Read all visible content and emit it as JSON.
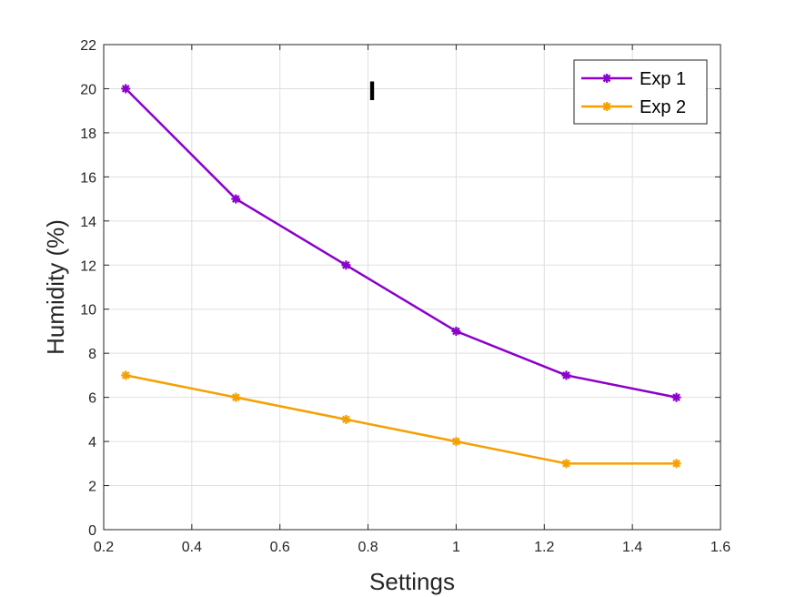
{
  "chart_data": {
    "type": "line",
    "title": "",
    "annotation": "I",
    "xlabel": "Settings",
    "ylabel": "Humidity (%)",
    "xlim": [
      0.2,
      1.6
    ],
    "ylim": [
      0,
      22
    ],
    "xticks": [
      0.2,
      0.4,
      0.6,
      0.8,
      1,
      1.2,
      1.4,
      1.6
    ],
    "xtick_labels": [
      "0.2",
      "0.4",
      "0.6",
      "0.8",
      "1",
      "1.2",
      "1.4",
      "1.6"
    ],
    "yticks": [
      0,
      2,
      4,
      6,
      8,
      10,
      12,
      14,
      16,
      18,
      20,
      22
    ],
    "ytick_labels": [
      "0",
      "2",
      "4",
      "6",
      "8",
      "10",
      "12",
      "14",
      "16",
      "18",
      "20",
      "22"
    ],
    "grid": true,
    "legend_position": "top-right",
    "x": [
      0.25,
      0.5,
      0.75,
      1,
      1.25,
      1.5
    ],
    "series": [
      {
        "name": "Exp 1",
        "color": "#8B00CC",
        "marker": "asterisk",
        "values": [
          20,
          15,
          12,
          9,
          7,
          6
        ]
      },
      {
        "name": "Exp 2",
        "color": "#F5A000",
        "marker": "asterisk",
        "values": [
          7,
          6,
          5,
          4,
          3,
          3
        ]
      }
    ]
  }
}
